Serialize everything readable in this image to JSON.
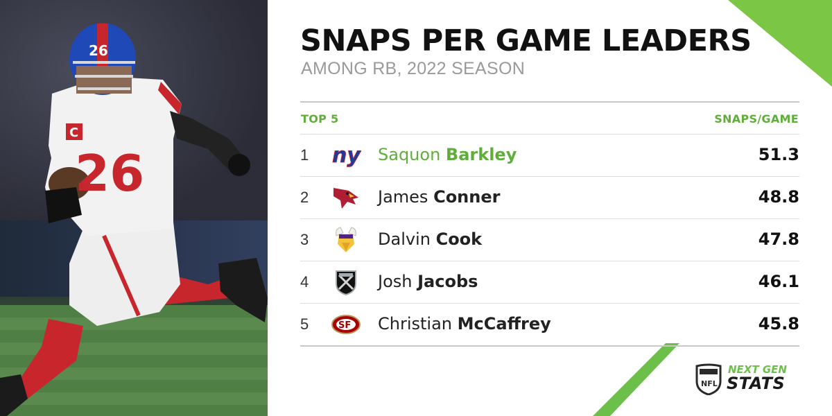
{
  "header": {
    "title": "SNAPS PER GAME LEADERS",
    "subtitle": "AMONG RB, 2022 SEASON"
  },
  "table": {
    "left_header": "TOP 5",
    "right_header": "SNAPS/GAME",
    "rows": [
      {
        "rank": "1",
        "first": "Saquon",
        "last": "Barkley",
        "value": "51.3",
        "team_icon": "giants-logo-icon"
      },
      {
        "rank": "2",
        "first": "James",
        "last": "Conner",
        "value": "48.8",
        "team_icon": "cardinals-logo-icon"
      },
      {
        "rank": "3",
        "first": "Dalvin",
        "last": "Cook",
        "value": "47.8",
        "team_icon": "vikings-logo-icon"
      },
      {
        "rank": "4",
        "first": "Josh",
        "last": "Jacobs",
        "value": "46.1",
        "team_icon": "raiders-logo-icon"
      },
      {
        "rank": "5",
        "first": "Christian",
        "last": "McCaffrey",
        "value": "45.8",
        "team_icon": "49ers-logo-icon"
      }
    ]
  },
  "photo": {
    "jersey_number": "26",
    "captain_patch": "C"
  },
  "branding": {
    "line1": "NEXT GEN",
    "line2": "STATS",
    "shield_text": "NFL"
  },
  "colors": {
    "accent_green": "#5fae3a",
    "title": "#111111",
    "subtitle": "#9a9a9a"
  }
}
